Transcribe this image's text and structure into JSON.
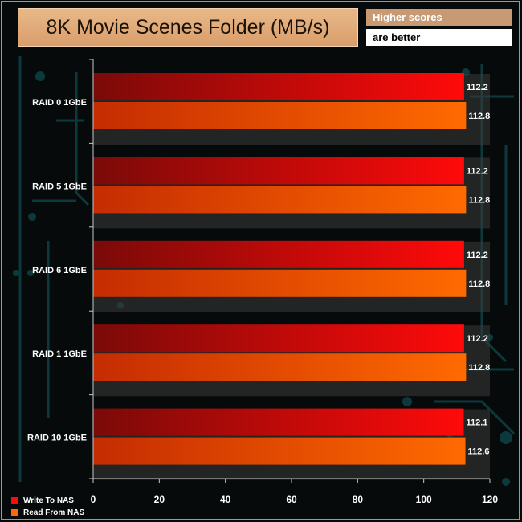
{
  "header": {
    "title": "8K Movie Scenes Folder (MB/s)",
    "note_line1": "Higher scores",
    "note_line2": "are better"
  },
  "colors": {
    "write_dark": "#7a0a08",
    "write_light": "#ff0a0a",
    "read_dark": "#c52c02",
    "read_light": "#ff6a00",
    "band": "#3a3a3a",
    "axis": "#c8c8c8",
    "text": "#ffffff"
  },
  "chart_data": {
    "type": "bar",
    "orientation": "horizontal",
    "title": "8K Movie Scenes Folder (MB/s)",
    "categories": [
      "RAID 0 1GbE",
      "RAID 5 1GbE",
      "RAID 6 1GbE",
      "RAID 1 1GbE",
      "RAID 10 1GbE"
    ],
    "series": [
      {
        "name": "Write To NAS",
        "values": [
          112.2,
          112.2,
          112.2,
          112.2,
          112.1
        ],
        "color": "#ff0a0a"
      },
      {
        "name": "Read From NAS",
        "values": [
          112.8,
          112.8,
          112.8,
          112.8,
          112.6
        ],
        "color": "#ff6a00"
      }
    ],
    "value_labels": [
      [
        "112.2",
        "112.8"
      ],
      [
        "112.2",
        "112.8"
      ],
      [
        "112.2",
        "112.8"
      ],
      [
        "112.2",
        "112.8"
      ],
      [
        "112.1",
        "112.6"
      ]
    ],
    "xlim": [
      0,
      120
    ],
    "xticks": [
      "0",
      "20",
      "40",
      "60",
      "80",
      "100",
      "120"
    ],
    "grid": false,
    "legend_position": "bottom-left"
  }
}
